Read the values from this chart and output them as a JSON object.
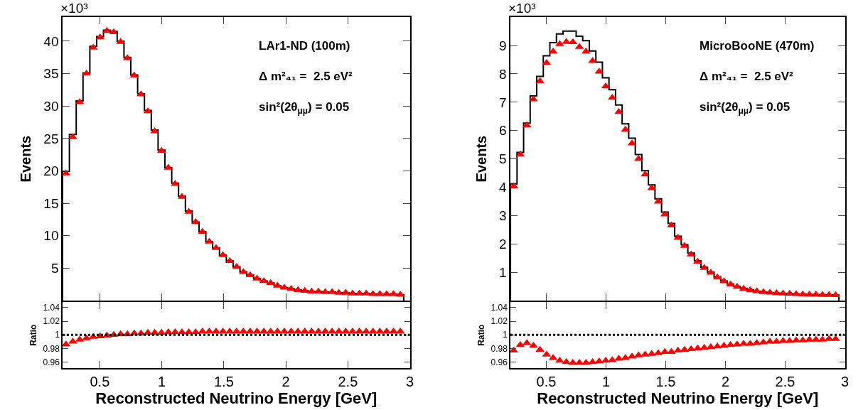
{
  "chart_data": [
    {
      "type": "histogram",
      "bins": [
        0.2,
        0.255,
        0.31,
        0.365,
        0.42,
        0.475,
        0.53,
        0.585,
        0.64,
        0.695,
        0.75,
        0.805,
        0.86,
        0.915,
        0.97,
        1.025,
        1.08,
        1.135,
        1.19,
        1.245,
        1.3,
        1.355,
        1.41,
        1.465,
        1.52,
        1.575,
        1.63,
        1.685,
        1.74,
        1.795,
        1.85,
        1.905,
        1.96,
        2.015,
        2.07,
        2.125,
        2.18,
        2.235,
        2.29,
        2.345,
        2.4,
        2.455,
        2.51,
        2.565,
        2.62,
        2.675,
        2.73,
        2.785,
        2.84,
        2.895,
        2.95
      ],
      "values": [
        19.9,
        25.6,
        30.8,
        35.1,
        39.2,
        40.7,
        41.7,
        41.5,
        40.0,
        37.5,
        34.8,
        31.9,
        29.3,
        26.3,
        23.2,
        20.5,
        18.1,
        16.1,
        13.8,
        12.1,
        10.6,
        9.1,
        8.1,
        7.0,
        6.1,
        5.2,
        4.4,
        3.9,
        3.4,
        3.0,
        2.7,
        2.3,
        2.0,
        1.8,
        1.6,
        1.5,
        1.4,
        1.4,
        1.3,
        1.3,
        1.2,
        1.2,
        1.1,
        1.1,
        1.1,
        1.0,
        1.0,
        1.0,
        1.0,
        0.9
      ],
      "color": "#000000",
      "series": [
        {
          "type": "scatter",
          "color": "#ff0000",
          "x": [
            0.2275,
            0.2825,
            0.3375,
            0.3925,
            0.4475,
            0.5025,
            0.5575,
            0.6125,
            0.6675,
            0.7225,
            0.7775,
            0.8325,
            0.8875,
            0.9425,
            0.9975,
            1.0525,
            1.1075,
            1.1625,
            1.2175,
            1.2725,
            1.3275,
            1.3825,
            1.4375,
            1.4925,
            1.5475,
            1.6025,
            1.6575,
            1.7125,
            1.7675,
            1.8225,
            1.8775,
            1.9325,
            1.9875,
            2.0425,
            2.0975,
            2.1525,
            2.2075,
            2.2625,
            2.3175,
            2.3725,
            2.4275,
            2.4825,
            2.5375,
            2.5925,
            2.6475,
            2.7025,
            2.7575,
            2.8125,
            2.8675,
            2.9225
          ],
          "values": [
            19.6,
            25.2,
            30.6,
            35.0,
            39.0,
            40.6,
            41.6,
            41.4,
            39.9,
            37.4,
            34.7,
            31.8,
            29.2,
            26.1,
            23.1,
            20.5,
            18.0,
            16.0,
            13.7,
            12.1,
            10.6,
            9.1,
            8.1,
            7.0,
            6.1,
            5.2,
            4.4,
            3.9,
            3.4,
            3.0,
            2.7,
            2.3,
            2.0,
            1.8,
            1.6,
            1.5,
            1.4,
            1.4,
            1.3,
            1.3,
            1.2,
            1.2,
            1.1,
            1.1,
            1.1,
            1.0,
            1.0,
            1.0,
            1.0,
            0.9
          ]
        }
      ],
      "marker": "triangle",
      "ylabel": "Events",
      "xlim": [
        0.2,
        3.0
      ],
      "xticks": [
        {
          "value": 0.5,
          "label": null
        },
        {
          "value": 1,
          "label": null
        },
        {
          "value": 1.5,
          "label": null
        },
        {
          "value": 2,
          "label": null
        },
        {
          "value": 2.5,
          "label": null
        },
        {
          "value": 3,
          "label": null
        }
      ],
      "ylim": [
        0,
        43.7
      ],
      "yticks": [
        5,
        10,
        15,
        20,
        25,
        30,
        35,
        40
      ],
      "tick_labels": "y",
      "annotations": [
        "×10³",
        "LAr1-ND (100m)",
        "Δ m²₄₁ =  2.5 eV²",
        "sin²(2θ$_{μμ}$) = 0.05"
      ]
    },
    {
      "type": "scatter",
      "x": [
        0.2275,
        0.2825,
        0.3375,
        0.3925,
        0.4475,
        0.5025,
        0.5575,
        0.6125,
        0.6675,
        0.7225,
        0.7775,
        0.8325,
        0.8875,
        0.9425,
        0.9975,
        1.0525,
        1.1075,
        1.1625,
        1.2175,
        1.2725,
        1.3275,
        1.3825,
        1.4375,
        1.4925,
        1.5475,
        1.6025,
        1.6575,
        1.7125,
        1.7675,
        1.8225,
        1.8775,
        1.9325,
        1.9875,
        2.0425,
        2.0975,
        2.1525,
        2.2075,
        2.2625,
        2.3175,
        2.3725,
        2.4275,
        2.4825,
        2.5375,
        2.5925,
        2.6475,
        2.7025,
        2.7575,
        2.8125,
        2.8675,
        2.9225
      ],
      "values": [
        0.986,
        0.99,
        0.993,
        0.995,
        0.997,
        0.998,
        0.999,
        1.0,
        1.001,
        1.001,
        1.002,
        1.002,
        1.003,
        1.003,
        1.003,
        1.004,
        1.004,
        1.004,
        1.004,
        1.004,
        1.005,
        1.005,
        1.005,
        1.005,
        1.005,
        1.005,
        1.005,
        1.005,
        1.005,
        1.005,
        1.005,
        1.005,
        1.005,
        1.005,
        1.005,
        1.005,
        1.005,
        1.005,
        1.005,
        1.005,
        1.005,
        1.005,
        1.005,
        1.005,
        1.005,
        1.005,
        1.005,
        1.005,
        1.005,
        1.005
      ],
      "color": "#ff0000",
      "marker": "triangle",
      "xlabel": "Reconstructed Neutrino Energy [GeV]",
      "ylabel": "Ratio",
      "xlim": [
        0.2,
        3.0
      ],
      "xticks": [
        0.5,
        1,
        1.5,
        2,
        2.5,
        3
      ],
      "ylim": [
        0.951,
        1.048
      ],
      "yticks": [
        0.96,
        0.98,
        1,
        1.02,
        1.04
      ],
      "ref_lines": [
        {
          "axis": "y",
          "value": 1,
          "color": "#000000",
          "line_style": "dotted"
        }
      ]
    },
    {
      "type": "histogram",
      "bins": [
        0.2,
        0.255,
        0.31,
        0.365,
        0.42,
        0.475,
        0.53,
        0.585,
        0.64,
        0.695,
        0.75,
        0.805,
        0.86,
        0.915,
        0.97,
        1.025,
        1.08,
        1.135,
        1.19,
        1.245,
        1.3,
        1.355,
        1.41,
        1.465,
        1.52,
        1.575,
        1.63,
        1.685,
        1.74,
        1.795,
        1.85,
        1.905,
        1.96,
        2.015,
        2.07,
        2.125,
        2.18,
        2.235,
        2.29,
        2.345,
        2.4,
        2.455,
        2.51,
        2.565,
        2.62,
        2.675,
        2.73,
        2.785,
        2.84,
        2.895,
        2.95
      ],
      "values": [
        4.12,
        5.23,
        6.26,
        7.22,
        7.91,
        8.64,
        9.1,
        9.41,
        9.51,
        9.51,
        9.33,
        9.17,
        8.81,
        8.41,
        7.86,
        7.44,
        6.9,
        6.24,
        5.73,
        5.15,
        4.58,
        4.08,
        3.59,
        3.12,
        2.72,
        2.27,
        1.97,
        1.67,
        1.4,
        1.17,
        1.0,
        0.83,
        0.69,
        0.58,
        0.5,
        0.43,
        0.38,
        0.33,
        0.3,
        0.28,
        0.26,
        0.25,
        0.24,
        0.23,
        0.22,
        0.21,
        0.21,
        0.2,
        0.2,
        0.19
      ],
      "color": "#000000",
      "series": [
        {
          "type": "scatter",
          "color": "#ff0000",
          "x": [
            0.2275,
            0.2825,
            0.3375,
            0.3925,
            0.4475,
            0.5025,
            0.5575,
            0.6125,
            0.6675,
            0.7225,
            0.7775,
            0.8325,
            0.8875,
            0.9425,
            0.9975,
            1.0525,
            1.1075,
            1.1625,
            1.2175,
            1.2725,
            1.3275,
            1.3825,
            1.4375,
            1.4925,
            1.5475,
            1.6025,
            1.6575,
            1.7125,
            1.7675,
            1.8225,
            1.8775,
            1.9325,
            1.9875,
            2.0425,
            2.0975,
            2.1525,
            2.2075,
            2.2625,
            2.3175,
            2.3725,
            2.4275,
            2.4825,
            2.5375,
            2.5925,
            2.6475,
            2.7025,
            2.7575,
            2.8125,
            2.8675,
            2.9225
          ],
          "values": [
            4.03,
            5.15,
            6.18,
            7.1,
            7.74,
            8.39,
            8.79,
            9.05,
            9.13,
            9.12,
            8.95,
            8.79,
            8.46,
            8.08,
            7.56,
            7.16,
            6.66,
            6.03,
            5.55,
            5.0,
            4.45,
            3.97,
            3.49,
            3.04,
            2.65,
            2.22,
            1.93,
            1.63,
            1.37,
            1.15,
            0.98,
            0.82,
            0.68,
            0.57,
            0.49,
            0.42,
            0.37,
            0.33,
            0.3,
            0.28,
            0.26,
            0.25,
            0.24,
            0.23,
            0.22,
            0.21,
            0.21,
            0.2,
            0.2,
            0.19
          ]
        }
      ],
      "marker": "triangle",
      "ylabel": "Events",
      "xlim": [
        0.2,
        3.0
      ],
      "xticks": [
        {
          "value": 0.5,
          "label": null
        },
        {
          "value": 1,
          "label": null
        },
        {
          "value": 1.5,
          "label": null
        },
        {
          "value": 2,
          "label": null
        },
        {
          "value": 2.5,
          "label": null
        },
        {
          "value": 3,
          "label": null
        }
      ],
      "ylim": [
        0,
        10
      ],
      "yticks": [
        1,
        2,
        3,
        4,
        5,
        6,
        7,
        8,
        9
      ],
      "tick_labels": "y",
      "annotations": [
        "×10³",
        "MicroBooNE (470m)",
        "Δ m²₄₁ =  2.5 eV²",
        "sin²(2θ$_{μμ}$) = 0.05"
      ]
    },
    {
      "type": "scatter",
      "x": [
        0.2275,
        0.2825,
        0.3375,
        0.3925,
        0.4475,
        0.5025,
        0.5575,
        0.6125,
        0.6675,
        0.7225,
        0.7775,
        0.8325,
        0.8875,
        0.9425,
        0.9975,
        1.0525,
        1.1075,
        1.1625,
        1.2175,
        1.2725,
        1.3275,
        1.3825,
        1.4375,
        1.4925,
        1.5475,
        1.6025,
        1.6575,
        1.7125,
        1.7675,
        1.8225,
        1.8775,
        1.9325,
        1.9875,
        2.0425,
        2.0975,
        2.1525,
        2.2075,
        2.2625,
        2.3175,
        2.3725,
        2.4275,
        2.4825,
        2.5375,
        2.5925,
        2.6475,
        2.7025,
        2.7575,
        2.8125,
        2.8675,
        2.9225
      ],
      "values": [
        0.977,
        0.985,
        0.988,
        0.984,
        0.978,
        0.971,
        0.966,
        0.962,
        0.96,
        0.959,
        0.959,
        0.959,
        0.96,
        0.961,
        0.962,
        0.963,
        0.965,
        0.966,
        0.968,
        0.97,
        0.971,
        0.972,
        0.973,
        0.975,
        0.975,
        0.977,
        0.978,
        0.979,
        0.98,
        0.981,
        0.982,
        0.983,
        0.984,
        0.985,
        0.986,
        0.987,
        0.987,
        0.988,
        0.989,
        0.99,
        0.99,
        0.991,
        0.991,
        0.992,
        0.992,
        0.993,
        0.993,
        0.993,
        0.994,
        0.994
      ],
      "color": "#ff0000",
      "marker": "triangle",
      "xlabel": "Reconstructed Neutrino Energy [GeV]",
      "ylabel": "Ratio",
      "xlim": [
        0.2,
        3.0
      ],
      "xticks": [
        0.5,
        1,
        1.5,
        2,
        2.5,
        3
      ],
      "ylim": [
        0.951,
        1.048
      ],
      "yticks": [
        0.96,
        0.98,
        1,
        1.02,
        1.04
      ],
      "ref_lines": [
        {
          "axis": "y",
          "value": 1,
          "color": "#000000",
          "line_style": "dotted"
        }
      ]
    }
  ]
}
